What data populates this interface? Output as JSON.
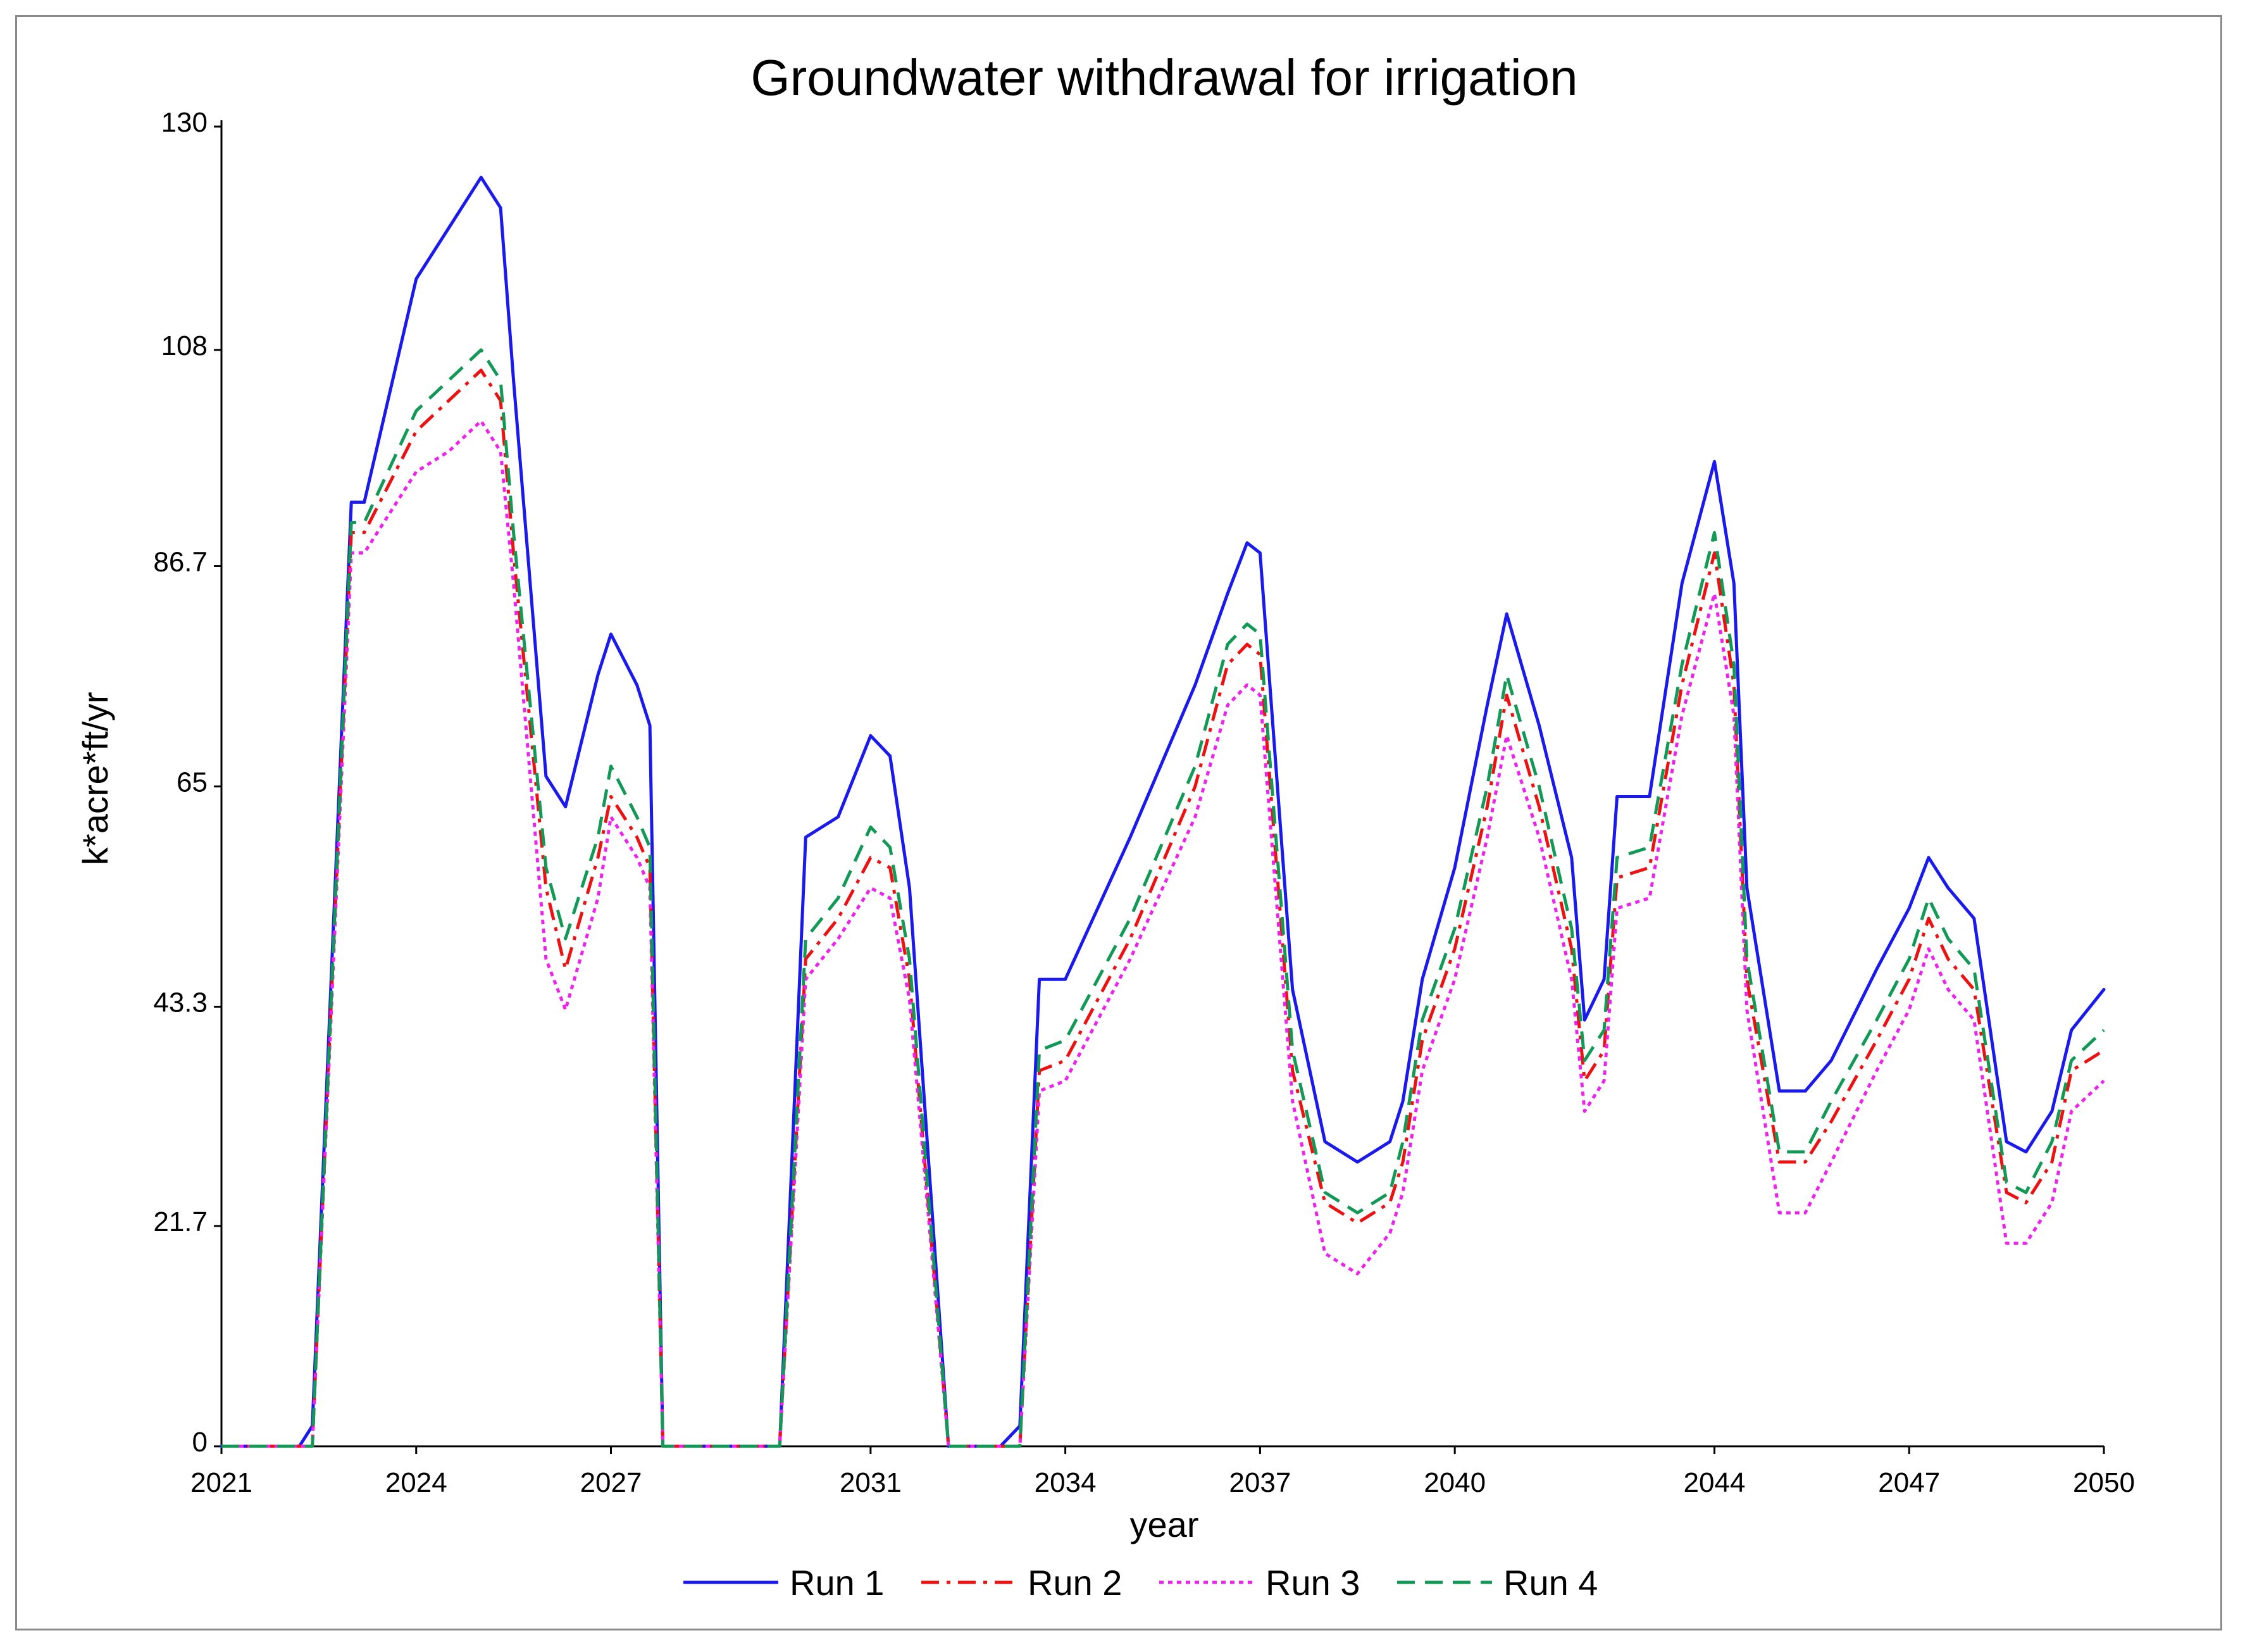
{
  "chart_data": {
    "type": "line",
    "title": "Groundwater withdrawal for irrigation",
    "xlabel": "year",
    "ylabel": "k*acre*ft/yr",
    "xlim": [
      2021,
      2050
    ],
    "ylim": [
      0,
      130
    ],
    "x_ticks": [
      "2021",
      "2024",
      "2027",
      "2031",
      "2034",
      "2037",
      "2040",
      "2044",
      "2047",
      "2050"
    ],
    "y_ticks": [
      "0",
      "21.7",
      "43.3",
      "65",
      "86.7",
      "108",
      "130"
    ],
    "grid": false,
    "legend_position": "bottom",
    "x": [
      2021,
      2022.2,
      2022.4,
      2023.0,
      2023.2,
      2024.0,
      2024.5,
      2025.0,
      2025.3,
      2025.5,
      2026.0,
      2026.3,
      2026.8,
      2027.0,
      2027.4,
      2027.6,
      2027.8,
      2029.4,
      2029.6,
      2030.0,
      2030.5,
      2031.0,
      2031.3,
      2031.6,
      2032.2,
      2032.6,
      2033.0,
      2033.3,
      2033.6,
      2034.0,
      2035.0,
      2036.0,
      2036.5,
      2036.8,
      2037.0,
      2037.5,
      2038.0,
      2038.5,
      2039.0,
      2039.2,
      2039.5,
      2040.0,
      2040.5,
      2040.8,
      2041.3,
      2041.8,
      2042.0,
      2042.3,
      2042.5,
      2043.0,
      2043.5,
      2044.0,
      2044.3,
      2044.5,
      2045.0,
      2045.4,
      2045.8,
      2046.5,
      2047.0,
      2047.3,
      2047.6,
      2048.0,
      2048.5,
      2048.8,
      2049.2,
      2049.5,
      2050.0
    ],
    "series": [
      {
        "name": "Run 1",
        "color": "#1a1aee",
        "dash": "solid",
        "values": [
          0,
          0,
          2,
          93,
          93,
          115,
          120,
          125,
          122,
          105,
          66,
          63,
          76,
          80,
          75,
          71,
          0,
          0,
          0,
          60,
          62,
          70,
          68,
          55,
          0,
          0,
          0,
          2,
          46,
          46,
          60,
          75,
          84,
          89,
          88,
          45,
          30,
          28,
          30,
          34,
          46,
          57,
          73,
          82,
          71,
          58,
          42,
          46,
          64,
          64,
          85,
          97,
          85,
          55,
          35,
          35,
          38,
          47,
          53,
          58,
          55,
          52,
          30,
          29,
          33,
          41,
          45
        ]
      },
      {
        "name": "Run 2",
        "color": "#ee1111",
        "dash": "dashdot",
        "values": [
          0,
          0,
          0,
          90,
          90,
          100,
          103,
          106,
          103,
          88,
          55,
          47,
          58,
          64,
          60,
          57,
          0,
          0,
          0,
          48,
          52,
          58,
          57,
          46,
          0,
          0,
          0,
          0,
          37,
          38,
          50,
          65,
          77,
          79,
          78,
          37,
          24,
          22,
          24,
          28,
          40,
          49,
          63,
          74,
          63,
          49,
          36,
          39,
          56,
          57,
          75,
          88,
          75,
          46,
          28,
          28,
          32,
          40,
          46,
          52,
          48,
          45,
          25,
          24,
          28,
          37,
          39
        ]
      },
      {
        "name": "Run 3",
        "color": "#ee22ee",
        "dash": "dotted",
        "values": [
          0,
          0,
          0,
          88,
          88,
          96,
          98,
          101,
          98,
          85,
          48,
          43,
          54,
          62,
          58,
          55,
          0,
          0,
          0,
          46,
          50,
          55,
          54,
          44,
          0,
          0,
          0,
          0,
          35,
          36,
          48,
          62,
          73,
          75,
          74,
          34,
          19,
          17,
          21,
          25,
          37,
          46,
          60,
          70,
          60,
          46,
          33,
          36,
          53,
          54,
          72,
          84,
          72,
          43,
          23,
          23,
          28,
          37,
          43,
          49,
          45,
          42,
          20,
          20,
          24,
          33,
          36
        ]
      },
      {
        "name": "Run 4",
        "color": "#119955",
        "dash": "dashed",
        "values": [
          0,
          0,
          0,
          91,
          91,
          102,
          105,
          108,
          105,
          90,
          57,
          50,
          60,
          67,
          62,
          59,
          0,
          0,
          0,
          50,
          54,
          61,
          59,
          48,
          0,
          0,
          0,
          0,
          39,
          40,
          52,
          67,
          79,
          81,
          80,
          39,
          25,
          23,
          25,
          30,
          42,
          51,
          65,
          76,
          65,
          51,
          38,
          41,
          58,
          59,
          77,
          90,
          77,
          48,
          29,
          29,
          34,
          42,
          48,
          54,
          50,
          47,
          26,
          25,
          30,
          38,
          41
        ]
      }
    ]
  }
}
